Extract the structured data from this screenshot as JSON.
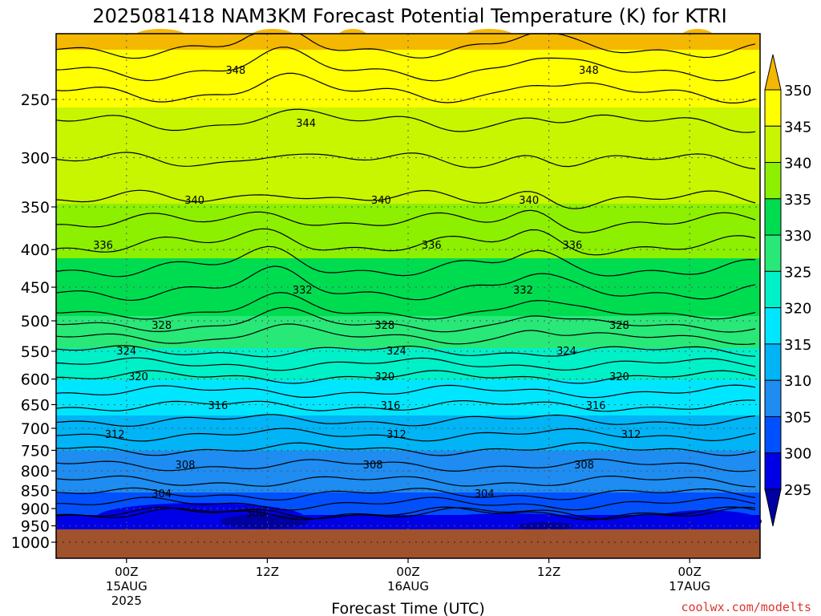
{
  "chart_data": {
    "type": "heatmap",
    "title": "2025081418 NAM3KM Forecast Potential Temperature (K) for KTRI",
    "xlabel": "Forecast Time (UTC)",
    "ylabel": "",
    "x_ticks": [
      {
        "hour": 6,
        "lines": [
          "00Z",
          "15AUG",
          "2025"
        ]
      },
      {
        "hour": 18,
        "lines": [
          "12Z"
        ]
      },
      {
        "hour": 30,
        "lines": [
          "00Z",
          "16AUG"
        ]
      },
      {
        "hour": 42,
        "lines": [
          "12Z"
        ]
      },
      {
        "hour": 54,
        "lines": [
          "00Z",
          "17AUG"
        ]
      }
    ],
    "xlim": [
      0,
      60
    ],
    "y_ticks": [
      250,
      300,
      350,
      400,
      450,
      500,
      550,
      600,
      650,
      700,
      750,
      800,
      850,
      900,
      950,
      1000
    ],
    "y_unit": "hPa",
    "colorbar": {
      "labels": [
        "350",
        "345",
        "340",
        "335",
        "330",
        "325",
        "320",
        "315",
        "310",
        "305",
        "300",
        "295"
      ],
      "bands": [
        {
          "min": 350,
          "max": null,
          "color": "#f5b800"
        },
        {
          "min": 345,
          "max": 350,
          "color": "#ffff00"
        },
        {
          "min": 340,
          "max": 345,
          "color": "#c8f500"
        },
        {
          "min": 335,
          "max": 340,
          "color": "#8cf000"
        },
        {
          "min": 330,
          "max": 335,
          "color": "#00dc50"
        },
        {
          "min": 325,
          "max": 330,
          "color": "#28e878"
        },
        {
          "min": 320,
          "max": 325,
          "color": "#00f0c8"
        },
        {
          "min": 315,
          "max": 320,
          "color": "#00e6ff"
        },
        {
          "min": 310,
          "max": 315,
          "color": "#00b4f5"
        },
        {
          "min": 305,
          "max": 310,
          "color": "#1e8cf0"
        },
        {
          "min": 300,
          "max": 305,
          "color": "#0050ff"
        },
        {
          "min": 295,
          "max": 300,
          "color": "#0000e6"
        },
        {
          "min": null,
          "max": 295,
          "color": "#0000a0"
        }
      ]
    },
    "ground_color": "#a0522d",
    "isotherm_levels": [
      300,
      304,
      308,
      312,
      316,
      320,
      324,
      328,
      332,
      336,
      340,
      344,
      348
    ],
    "contour_labels": [
      {
        "value": "348",
        "hour": 15.3
      },
      {
        "value": "348",
        "hour": 45.4
      },
      {
        "value": "344",
        "hour": 21.3
      },
      {
        "value": "340",
        "hour": 11.8
      },
      {
        "value": "340",
        "hour": 27.7
      },
      {
        "value": "340",
        "hour": 40.3
      },
      {
        "value": "336",
        "hour": 4.0
      },
      {
        "value": "336",
        "hour": 32.0
      },
      {
        "value": "336",
        "hour": 44.0
      },
      {
        "value": "332",
        "hour": 21.0
      },
      {
        "value": "332",
        "hour": 39.8
      },
      {
        "value": "328",
        "hour": 9.0
      },
      {
        "value": "328",
        "hour": 28.0
      },
      {
        "value": "328",
        "hour": 48.0
      },
      {
        "value": "324",
        "hour": 6.0
      },
      {
        "value": "324",
        "hour": 43.5
      },
      {
        "value": "324",
        "hour": 29.0
      },
      {
        "value": "320",
        "hour": 7.0
      },
      {
        "value": "320",
        "hour": 28.0
      },
      {
        "value": "320",
        "hour": 48.0
      },
      {
        "value": "316",
        "hour": 13.8
      },
      {
        "value": "316",
        "hour": 28.5
      },
      {
        "value": "316",
        "hour": 46.0
      },
      {
        "value": "312",
        "hour": 5.0
      },
      {
        "value": "312",
        "hour": 29.0
      },
      {
        "value": "312",
        "hour": 49.0
      },
      {
        "value": "308",
        "hour": 11.0
      },
      {
        "value": "308",
        "hour": 27.0
      },
      {
        "value": "308",
        "hour": 45.0
      },
      {
        "value": "304",
        "hour": 9.0
      },
      {
        "value": "304",
        "hour": 36.5
      },
      {
        "value": "300",
        "hour": 17.0
      }
    ],
    "grid": true,
    "legend": "colorbar-right"
  },
  "credit": "coolwx.com/modelts"
}
